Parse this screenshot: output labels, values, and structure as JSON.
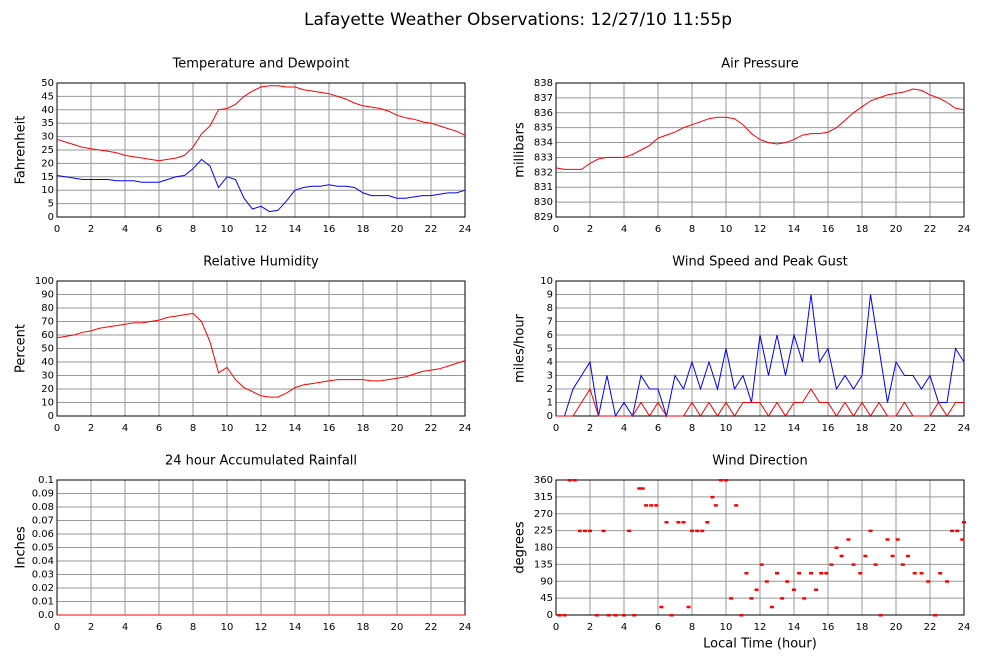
{
  "title": "Lafayette Weather Observations: 12/27/10 11:55p",
  "chart_data": [
    {
      "type": "line",
      "title": "Temperature and Dewpoint",
      "ylabel": "Fahrenheit",
      "xlim": [
        0,
        24
      ],
      "xticks": [
        0,
        2,
        4,
        6,
        8,
        10,
        12,
        14,
        16,
        18,
        20,
        22,
        24
      ],
      "ylim": [
        0,
        50
      ],
      "yticks": [
        0,
        5,
        10,
        15,
        20,
        25,
        30,
        35,
        40,
        45,
        50
      ],
      "grid": true,
      "x": [
        0,
        0.5,
        1,
        1.5,
        2,
        2.5,
        3,
        3.5,
        4,
        4.5,
        5,
        5.5,
        6,
        6.5,
        7,
        7.5,
        8,
        8.5,
        9,
        9.5,
        10,
        10.5,
        11,
        11.5,
        12,
        12.5,
        13,
        13.5,
        14,
        14.5,
        15,
        15.5,
        16,
        16.5,
        17,
        17.5,
        18,
        18.5,
        19,
        19.5,
        20,
        20.5,
        21,
        21.5,
        22,
        22.5,
        23,
        23.5,
        24
      ],
      "series": [
        {
          "color": "#ff0000",
          "values": [
            29,
            28,
            27,
            26,
            25.5,
            25,
            24.5,
            24,
            23,
            22.5,
            22,
            21.5,
            21,
            21.5,
            22,
            23,
            26,
            31,
            34,
            40,
            40.5,
            42,
            45,
            47,
            48.5,
            49,
            49,
            48.5,
            48.5,
            47.5,
            47,
            46.5,
            46,
            45,
            44,
            42.5,
            41.5,
            41,
            40.5,
            39.5,
            38,
            37,
            36.5,
            35.5,
            35,
            34,
            33,
            32,
            30.5
          ]
        },
        {
          "color": "#0000ff",
          "values": [
            15.5,
            15,
            14.5,
            14,
            14,
            14,
            14,
            13.5,
            13.5,
            13.5,
            13,
            13,
            13,
            14,
            15,
            15.5,
            18,
            21.5,
            19,
            11,
            15,
            14,
            7,
            3,
            4,
            2,
            2.5,
            6,
            10,
            11,
            11.5,
            11.5,
            12,
            11.5,
            11.5,
            11,
            9,
            8,
            8,
            8,
            7,
            7,
            7.5,
            8,
            8,
            8.5,
            9,
            9,
            10
          ]
        }
      ]
    },
    {
      "type": "line",
      "title": "Air Pressure",
      "ylabel": "millibars",
      "xlim": [
        0,
        24
      ],
      "xticks": [
        0,
        2,
        4,
        6,
        8,
        10,
        12,
        14,
        16,
        18,
        20,
        22,
        24
      ],
      "ylim": [
        829,
        838
      ],
      "yticks": [
        829,
        830,
        831,
        832,
        833,
        834,
        835,
        836,
        837,
        838
      ],
      "grid": true,
      "x": [
        0,
        0.5,
        1,
        1.5,
        2,
        2.5,
        3,
        3.5,
        4,
        4.5,
        5,
        5.5,
        6,
        6.5,
        7,
        7.5,
        8,
        8.5,
        9,
        9.5,
        10,
        10.5,
        11,
        11.5,
        12,
        12.5,
        13,
        13.5,
        14,
        14.5,
        15,
        15.5,
        16,
        16.5,
        17,
        17.5,
        18,
        18.5,
        19,
        19.5,
        20,
        20.5,
        21,
        21.5,
        22,
        22.5,
        23,
        23.5,
        24
      ],
      "series": [
        {
          "color": "#ff0000",
          "values": [
            832.3,
            832.2,
            832.2,
            832.2,
            832.6,
            832.9,
            833,
            833,
            833,
            833.2,
            833.5,
            833.8,
            834.3,
            834.5,
            834.7,
            835,
            835.2,
            835.4,
            835.6,
            835.7,
            835.7,
            835.6,
            835.2,
            834.6,
            834.2,
            834,
            833.9,
            834,
            834.2,
            834.5,
            834.6,
            834.6,
            834.7,
            835,
            835.5,
            836,
            836.4,
            836.8,
            837,
            837.2,
            837.3,
            837.4,
            837.6,
            837.5,
            837.2,
            837,
            836.7,
            836.3,
            836.2
          ]
        }
      ]
    },
    {
      "type": "line",
      "title": "Relative Humidity",
      "ylabel": "Percent",
      "xlim": [
        0,
        24
      ],
      "xticks": [
        0,
        2,
        4,
        6,
        8,
        10,
        12,
        14,
        16,
        18,
        20,
        22,
        24
      ],
      "ylim": [
        0,
        100
      ],
      "yticks": [
        0,
        10,
        20,
        30,
        40,
        50,
        60,
        70,
        80,
        90,
        100
      ],
      "grid": true,
      "x": [
        0,
        0.5,
        1,
        1.5,
        2,
        2.5,
        3,
        3.5,
        4,
        4.5,
        5,
        5.5,
        6,
        6.5,
        7,
        7.5,
        8,
        8.5,
        9,
        9.5,
        10,
        10.5,
        11,
        11.5,
        12,
        12.5,
        13,
        13.5,
        14,
        14.5,
        15,
        15.5,
        16,
        16.5,
        17,
        17.5,
        18,
        18.5,
        19,
        19.5,
        20,
        20.5,
        21,
        21.5,
        22,
        22.5,
        23,
        23.5,
        24
      ],
      "series": [
        {
          "color": "#ff0000",
          "values": [
            58,
            59,
            60,
            62,
            63,
            65,
            66,
            67,
            68,
            69,
            69,
            70,
            71,
            73,
            74,
            75,
            76,
            70,
            55,
            32,
            36,
            27,
            21,
            18,
            15,
            14,
            14,
            17,
            21,
            23,
            24,
            25,
            26,
            27,
            27,
            27,
            27,
            26,
            26,
            27,
            28,
            29,
            31,
            33,
            34,
            35,
            37,
            39,
            41
          ]
        }
      ]
    },
    {
      "type": "line",
      "title": "Wind Speed and Peak Gust",
      "ylabel": "miles/hour",
      "xlim": [
        0,
        24
      ],
      "xticks": [
        0,
        2,
        4,
        6,
        8,
        10,
        12,
        14,
        16,
        18,
        20,
        22,
        24
      ],
      "ylim": [
        0,
        10
      ],
      "yticks": [
        0,
        1,
        2,
        3,
        4,
        5,
        6,
        7,
        8,
        9,
        10
      ],
      "grid": true,
      "x": [
        0,
        0.5,
        1,
        1.5,
        2,
        2.5,
        3,
        3.5,
        4,
        4.5,
        5,
        5.5,
        6,
        6.5,
        7,
        7.5,
        8,
        8.5,
        9,
        9.5,
        10,
        10.5,
        11,
        11.5,
        12,
        12.5,
        13,
        13.5,
        14,
        14.5,
        15,
        15.5,
        16,
        16.5,
        17,
        17.5,
        18,
        18.5,
        19,
        19.5,
        20,
        20.5,
        21,
        21.5,
        22,
        22.5,
        23,
        23.5,
        24
      ],
      "series": [
        {
          "color": "#0000ff",
          "values": [
            0,
            0,
            2,
            3,
            4,
            0,
            3,
            0,
            1,
            0,
            3,
            2,
            2,
            0,
            3,
            2,
            4,
            2,
            4,
            2,
            5,
            2,
            3,
            1,
            6,
            3,
            6,
            3,
            6,
            4,
            9,
            4,
            5,
            2,
            3,
            2,
            3,
            9,
            5,
            1,
            4,
            3,
            3,
            2,
            3,
            1,
            1,
            5,
            4
          ]
        },
        {
          "color": "#ff0000",
          "values": [
            0,
            0,
            0,
            1,
            2,
            0,
            0,
            0,
            0,
            0,
            1,
            0,
            1,
            0,
            0,
            0,
            1,
            0,
            1,
            0,
            1,
            0,
            1,
            1,
            1,
            0,
            1,
            0,
            1,
            1,
            2,
            1,
            1,
            0,
            1,
            0,
            1,
            0,
            1,
            0,
            0,
            1,
            0,
            0,
            0,
            1,
            0,
            1,
            1
          ]
        }
      ]
    },
    {
      "type": "line",
      "title": "24 hour Accumulated Rainfall",
      "ylabel": "Inches",
      "xlim": [
        0,
        24
      ],
      "xticks": [
        0,
        2,
        4,
        6,
        8,
        10,
        12,
        14,
        16,
        18,
        20,
        22,
        24
      ],
      "ylim": [
        0,
        0.1
      ],
      "yticks": [
        {
          "value": 0,
          "label": "0.0"
        },
        0.01,
        0.02,
        0.03,
        0.04,
        0.05,
        0.06,
        0.07,
        0.08,
        0.09,
        0.1
      ],
      "grid": true,
      "x": [
        0,
        24
      ],
      "series": [
        {
          "color": "#ff0000",
          "values": [
            0,
            0
          ]
        }
      ]
    },
    {
      "type": "scatter",
      "title": "Wind Direction",
      "ylabel": "degrees",
      "xlabel": "Local Time (hour)",
      "xlim": [
        0,
        24
      ],
      "xticks": [
        0,
        2,
        4,
        6,
        8,
        10,
        12,
        14,
        16,
        18,
        20,
        22,
        24
      ],
      "ylim": [
        0,
        360
      ],
      "yticks": [
        0,
        45,
        90,
        135,
        180,
        225,
        270,
        315,
        360
      ],
      "grid": true,
      "color": "#ff0000",
      "x": [
        0.2,
        0.5,
        0.8,
        1.1,
        1.4,
        1.7,
        2,
        2.4,
        2.8,
        3.1,
        3.5,
        4,
        4.3,
        4.6,
        4.9,
        5.1,
        5.3,
        5.6,
        5.9,
        6.2,
        6.5,
        6.8,
        7.2,
        7.5,
        7.8,
        8,
        8.3,
        8.6,
        8.9,
        9.2,
        9.4,
        9.7,
        10,
        10.3,
        10.6,
        10.9,
        11.2,
        11.5,
        11.8,
        12.1,
        12.4,
        12.7,
        13,
        13.3,
        13.6,
        14,
        14.3,
        14.6,
        15,
        15.3,
        15.6,
        15.9,
        16.2,
        16.5,
        16.8,
        17.2,
        17.5,
        17.9,
        18.2,
        18.5,
        18.8,
        19.1,
        19.5,
        19.8,
        20.1,
        20.4,
        20.7,
        21.1,
        21.5,
        21.9,
        22.3,
        22.6,
        23,
        23.3,
        23.6,
        23.9,
        24
      ],
      "values": [
        0,
        0,
        360,
        360,
        225,
        225,
        225,
        0,
        225,
        0,
        0,
        0,
        225,
        0,
        338,
        338,
        293,
        293,
        293,
        22,
        248,
        0,
        248,
        248,
        22,
        225,
        225,
        225,
        248,
        315,
        293,
        360,
        360,
        45,
        293,
        0,
        112,
        45,
        68,
        135,
        90,
        22,
        112,
        45,
        90,
        68,
        112,
        45,
        112,
        68,
        112,
        112,
        135,
        180,
        158,
        202,
        135,
        112,
        158,
        225,
        135,
        0,
        202,
        158,
        202,
        135,
        158,
        112,
        112,
        90,
        0,
        112,
        90,
        225,
        225,
        202,
        248
      ]
    }
  ]
}
